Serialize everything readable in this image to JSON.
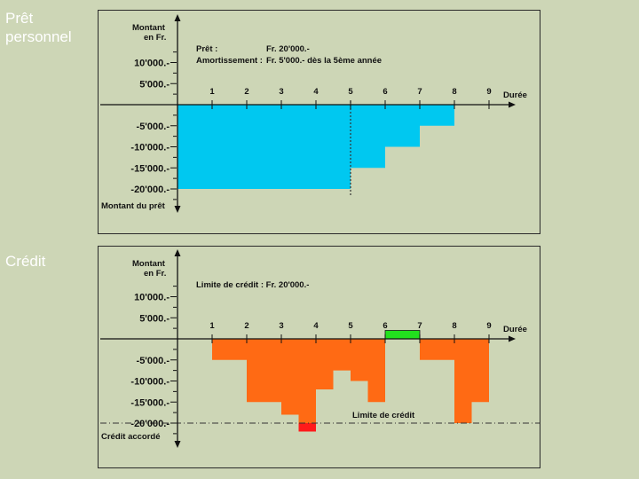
{
  "slide": {
    "label_top": "Prêt\npersonnel",
    "label_bottom": "Crédit"
  },
  "colors": {
    "background": "#cdd6b6",
    "loan_fill": "#00c8f0",
    "credit_fill": "#ff6a14",
    "over_limit_fill": "#ff1a1a",
    "positive_fill": "#22e01e"
  },
  "chart_data": [
    {
      "type": "area",
      "y_title": "Montant\nen Fr.",
      "xlabel": "Durée",
      "y_bottom_label": "Montant du prêt",
      "ylim": [
        -25000,
        11000
      ],
      "xlim": [
        0,
        10
      ],
      "x_ticks": [
        "1",
        "2",
        "3",
        "4",
        "5",
        "6",
        "7",
        "8",
        "9"
      ],
      "y_ticks": [
        {
          "value": 10000,
          "label": "10'000.-"
        },
        {
          "value": 5000,
          "label": "5'000.-"
        },
        {
          "value": -5000,
          "label": "-5'000.-"
        },
        {
          "value": -10000,
          "label": "-10'000.-"
        },
        {
          "value": -15000,
          "label": "-15'000.-"
        },
        {
          "value": -20000,
          "label": "-20'000.-"
        }
      ],
      "annotation": {
        "line1_label": "Prêt :",
        "line1_value": "Fr. 20'000.-",
        "line2_label": "Amortissement :",
        "line2_value": "Fr.  5'000.- dès la 5ème année"
      },
      "steps": [
        {
          "x0": 0,
          "x1": 5,
          "value": -20000
        },
        {
          "x0": 5,
          "x1": 6,
          "value": -15000
        },
        {
          "x0": 6,
          "x1": 7,
          "value": -10000
        },
        {
          "x0": 7,
          "x1": 8,
          "value": -5000
        }
      ],
      "marker_x": 5
    },
    {
      "type": "bar",
      "y_title": "Montant\nen Fr.",
      "xlabel": "Durée",
      "y_bottom_label": "Crédit accordé",
      "ylim": [
        -25000,
        11000
      ],
      "xlim": [
        0,
        10
      ],
      "x_ticks": [
        "1",
        "2",
        "3",
        "4",
        "5",
        "6",
        "7",
        "8",
        "9"
      ],
      "y_ticks": [
        {
          "value": 10000,
          "label": "10'000.-"
        },
        {
          "value": 5000,
          "label": "5'000.-"
        },
        {
          "value": -5000,
          "label": "-5'000.-"
        },
        {
          "value": -10000,
          "label": "-10'000.-"
        },
        {
          "value": -15000,
          "label": "-15'000.-"
        },
        {
          "value": -20000,
          "label": "-20'000.-"
        }
      ],
      "annotation": {
        "line1_label": "Limite de crédit : Fr. 20'000.-"
      },
      "limit": {
        "value": -20000,
        "label": "Limite de crédit"
      },
      "segments": [
        {
          "x0": 1,
          "x1": 2,
          "value": -5000
        },
        {
          "x0": 2,
          "x1": 3,
          "value": -15000
        },
        {
          "x0": 3,
          "x1": 3.5,
          "value": -18000
        },
        {
          "x0": 3.5,
          "x1": 4,
          "value": -22000
        },
        {
          "x0": 4,
          "x1": 4.5,
          "value": -12000
        },
        {
          "x0": 4.5,
          "x1": 5,
          "value": -7500
        },
        {
          "x0": 5,
          "x1": 5.5,
          "value": -10000
        },
        {
          "x0": 5.5,
          "x1": 6,
          "value": -15000
        },
        {
          "x0": 6,
          "x1": 7,
          "value": 2000
        },
        {
          "x0": 7,
          "x1": 8,
          "value": -5000
        },
        {
          "x0": 8,
          "x1": 8.5,
          "value": -20000
        },
        {
          "x0": 8.5,
          "x1": 9,
          "value": -15000
        }
      ]
    }
  ]
}
